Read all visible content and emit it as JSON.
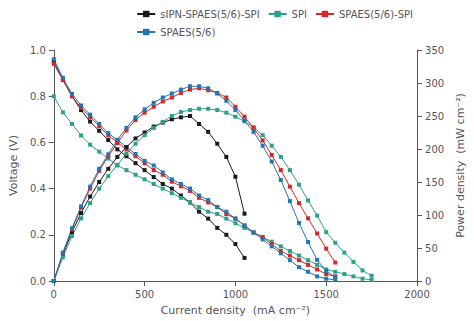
{
  "chart_data": {
    "type": "line",
    "xlabel": "Current density  (mA cm⁻²)",
    "ylabel": "Voltage (V)",
    "y2label": "Power density  (mW cm⁻²)",
    "xlim": [
      0,
      2000
    ],
    "xticks": [
      0,
      500,
      1000,
      1500,
      2000
    ],
    "ylim": [
      0,
      1.0
    ],
    "yticks": [
      {
        "value": 0,
        "label": "0.0"
      },
      0.2,
      0.4,
      0.6,
      0.8,
      {
        "value": 1.0,
        "label": "1.0"
      }
    ],
    "y2lim": [
      0,
      350
    ],
    "y2ticks": [
      0,
      50,
      100,
      150,
      200,
      250,
      300,
      350
    ],
    "grid": false,
    "legend": "upper right",
    "marker": "square",
    "series": [
      {
        "name": "sIPN-SPAES(5/6)-SPI",
        "color": "#1a1a1a",
        "x": [
          0,
          50,
          100,
          150,
          200,
          250,
          300,
          350,
          400,
          450,
          500,
          550,
          600,
          650,
          700,
          750,
          800,
          850,
          900,
          950,
          1000,
          1050
        ],
        "values": [
          0.95,
          0.87,
          0.8,
          0.74,
          0.69,
          0.65,
          0.61,
          0.57,
          0.54,
          0.51,
          0.48,
          0.45,
          0.42,
          0.4,
          0.37,
          0.34,
          0.3,
          0.27,
          0.23,
          0.2,
          0.16,
          0.1
        ]
      },
      {
        "name": "SPI",
        "color": "#2ca08c",
        "x": [
          0,
          50,
          100,
          150,
          200,
          250,
          300,
          350,
          400,
          450,
          500,
          550,
          600,
          650,
          700,
          750,
          800,
          850,
          900,
          950,
          1000,
          1050,
          1100,
          1150,
          1200,
          1250,
          1300,
          1350,
          1400,
          1450,
          1500,
          1550,
          1600,
          1650,
          1700,
          1750
        ],
        "values": [
          0.8,
          0.73,
          0.68,
          0.63,
          0.59,
          0.56,
          0.53,
          0.5,
          0.48,
          0.46,
          0.44,
          0.42,
          0.4,
          0.38,
          0.36,
          0.34,
          0.32,
          0.3,
          0.29,
          0.27,
          0.25,
          0.23,
          0.21,
          0.19,
          0.17,
          0.15,
          0.13,
          0.11,
          0.09,
          0.07,
          0.05,
          0.04,
          0.03,
          0.02,
          0.01,
          0.005
        ]
      },
      {
        "name": "SPAES(5/6)-SPI",
        "color": "#d62728",
        "x": [
          0,
          50,
          100,
          150,
          200,
          250,
          300,
          350,
          400,
          450,
          500,
          550,
          600,
          650,
          700,
          750,
          800,
          850,
          900,
          950,
          1000,
          1050,
          1100,
          1150,
          1200,
          1250,
          1300,
          1350,
          1400,
          1450,
          1500,
          1550
        ],
        "values": [
          0.94,
          0.87,
          0.8,
          0.75,
          0.71,
          0.67,
          0.63,
          0.6,
          0.57,
          0.54,
          0.51,
          0.48,
          0.46,
          0.43,
          0.41,
          0.39,
          0.36,
          0.34,
          0.32,
          0.29,
          0.27,
          0.24,
          0.21,
          0.19,
          0.16,
          0.13,
          0.11,
          0.09,
          0.07,
          0.05,
          0.03,
          0.02
        ]
      },
      {
        "name": "SPAES(5/6)",
        "color": "#1f77b4",
        "x": [
          0,
          50,
          100,
          150,
          200,
          250,
          300,
          350,
          400,
          450,
          500,
          550,
          600,
          650,
          700,
          750,
          800,
          850,
          900,
          950,
          1000,
          1050,
          1100,
          1150,
          1200,
          1250,
          1300,
          1350,
          1400,
          1450,
          1500,
          1550
        ],
        "values": [
          0.96,
          0.88,
          0.81,
          0.76,
          0.72,
          0.68,
          0.64,
          0.61,
          0.58,
          0.55,
          0.52,
          0.5,
          0.47,
          0.44,
          0.42,
          0.4,
          0.37,
          0.35,
          0.32,
          0.3,
          0.27,
          0.24,
          0.21,
          0.18,
          0.15,
          0.12,
          0.09,
          0.06,
          0.04,
          0.02,
          0.01,
          0.005
        ]
      },
      {
        "axis": "y2",
        "color": "#1a1a1a",
        "x": [
          0,
          50,
          100,
          150,
          200,
          250,
          300,
          350,
          400,
          450,
          500,
          550,
          600,
          650,
          700,
          750,
          800,
          850,
          900,
          950,
          1000,
          1050
        ],
        "values": [
          0,
          40,
          74,
          103,
          128,
          150,
          170,
          188,
          203,
          216,
          225,
          234,
          240,
          245,
          248,
          250,
          238,
          226,
          208,
          188,
          158,
          102
        ]
      },
      {
        "axis": "y2",
        "color": "#2ca08c",
        "x": [
          0,
          50,
          100,
          150,
          200,
          250,
          300,
          350,
          400,
          450,
          500,
          550,
          600,
          650,
          700,
          750,
          800,
          850,
          900,
          950,
          1000,
          1050,
          1100,
          1150,
          1200,
          1250,
          1300,
          1350,
          1400,
          1450,
          1500,
          1550,
          1600,
          1650,
          1700,
          1750
        ],
        "values": [
          0,
          36,
          68,
          95,
          118,
          140,
          159,
          176,
          193,
          208,
          221,
          232,
          241,
          250,
          256,
          259,
          261,
          261,
          259,
          255,
          249,
          242,
          233,
          221,
          205,
          188,
          168,
          146,
          122,
          99,
          74,
          58,
          43,
          29,
          16,
          8
        ]
      },
      {
        "axis": "y2",
        "color": "#d62728",
        "x": [
          0,
          50,
          100,
          150,
          200,
          250,
          300,
          350,
          400,
          450,
          500,
          550,
          600,
          650,
          700,
          750,
          800,
          850,
          900,
          950,
          1000,
          1050,
          1100,
          1150,
          1200,
          1250,
          1300,
          1350,
          1400,
          1450,
          1500,
          1550
        ],
        "values": [
          0,
          42,
          78,
          111,
          140,
          167,
          189,
          209,
          228,
          244,
          255,
          264,
          272,
          278,
          285,
          290,
          292,
          289,
          285,
          278,
          264,
          249,
          232,
          213,
          191,
          168,
          143,
          118,
          95,
          72,
          49,
          28
        ]
      },
      {
        "axis": "y2",
        "color": "#1f77b4",
        "x": [
          0,
          50,
          100,
          150,
          200,
          250,
          300,
          350,
          400,
          450,
          500,
          550,
          600,
          650,
          700,
          750,
          800,
          850,
          900,
          950,
          1000,
          1050,
          1100,
          1150,
          1200,
          1250,
          1300,
          1350,
          1400,
          1450,
          1500,
          1550
        ],
        "values": [
          0,
          43,
          80,
          113,
          143,
          170,
          192,
          214,
          232,
          248,
          260,
          270,
          278,
          284,
          290,
          295,
          295,
          292,
          284,
          273,
          259,
          243,
          226,
          205,
          181,
          153,
          121,
          88,
          59,
          32,
          15,
          6
        ]
      }
    ]
  }
}
